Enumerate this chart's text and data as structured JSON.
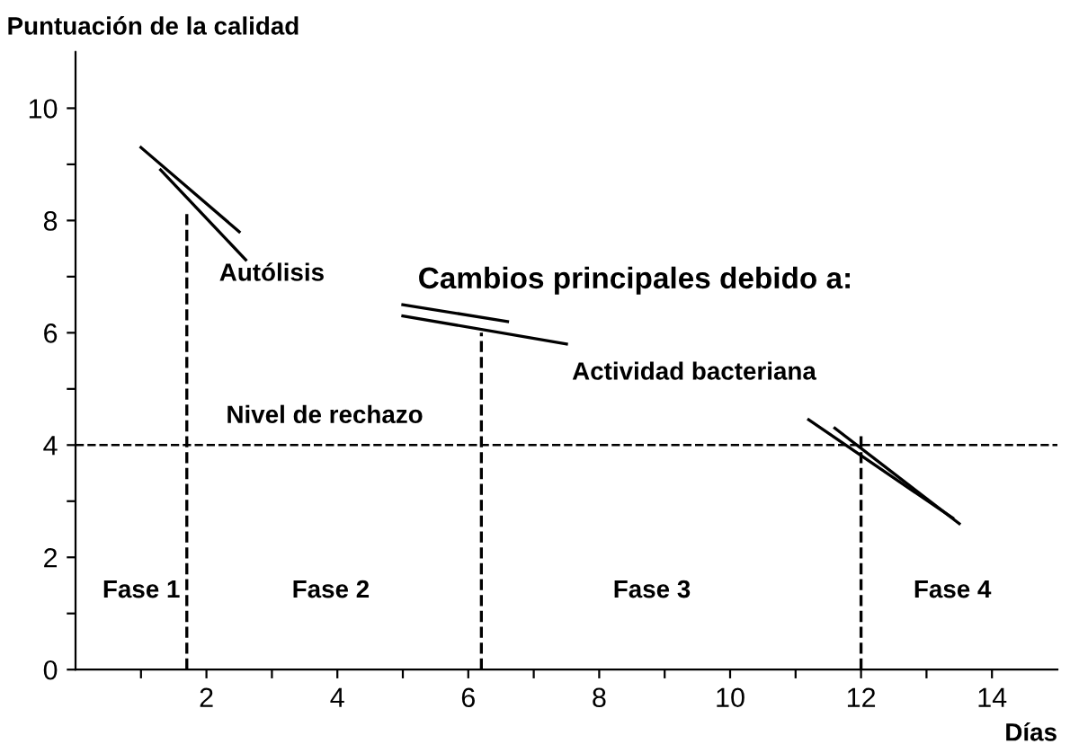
{
  "chart_data": {
    "type": "line",
    "ylabel": "Puntuación de la calidad",
    "xlabel": "Días",
    "xlim": [
      0,
      15
    ],
    "ylim": [
      0,
      11
    ],
    "xticks": [
      {
        "value": 1,
        "label": null
      },
      2,
      {
        "value": 3,
        "label": null
      },
      4,
      {
        "value": 5,
        "label": null
      },
      6,
      {
        "value": 7,
        "label": null
      },
      8,
      {
        "value": 9,
        "label": null
      },
      10,
      {
        "value": 11,
        "label": null
      },
      12,
      {
        "value": 13,
        "label": null
      },
      14
    ],
    "yticks": [
      0,
      {
        "value": 1,
        "label": null
      },
      2,
      {
        "value": 3,
        "label": null
      },
      4,
      {
        "value": 5,
        "label": null
      },
      6,
      {
        "value": 7,
        "label": null
      },
      8,
      {
        "value": 9,
        "label": null
      },
      10
    ],
    "grid": false,
    "legend": false,
    "marker": "none",
    "series": [
      {
        "color": "#000000",
        "x": [
          1.0,
          2.5
        ],
        "values": [
          9.3,
          7.8
        ],
        "line_style": "solid"
      },
      {
        "color": "#000000",
        "x": [
          1.3,
          2.6
        ],
        "values": [
          8.9,
          7.3
        ],
        "line_style": "solid"
      },
      {
        "color": "#000000",
        "x": [
          5.0,
          6.6
        ],
        "values": [
          6.5,
          6.2
        ],
        "line_style": "solid"
      },
      {
        "color": "#000000",
        "x": [
          5.0,
          7.5
        ],
        "values": [
          6.3,
          5.8
        ],
        "line_style": "solid"
      },
      {
        "color": "#000000",
        "x": [
          11.2,
          13.4
        ],
        "values": [
          4.45,
          2.7
        ],
        "line_style": "solid"
      },
      {
        "color": "#000000",
        "x": [
          11.6,
          13.5
        ],
        "values": [
          4.3,
          2.6
        ],
        "line_style": "solid"
      },
      {
        "color": "#000000",
        "x": [
          1.7,
          1.7
        ],
        "values": [
          0,
          8.2
        ],
        "line_style": "dashed"
      },
      {
        "color": "#000000",
        "x": [
          6.2,
          6.2
        ],
        "values": [
          0,
          6.0
        ],
        "line_style": "dashed"
      },
      {
        "color": "#000000",
        "x": [
          12.0,
          12.0
        ],
        "values": [
          0,
          4.2
        ],
        "line_style": "dashed"
      }
    ],
    "ref_lines": [
      {
        "axis": "y",
        "value": 4,
        "label": "Nivel de rechazo",
        "color": "#000000",
        "line_style": "dashed"
      }
    ],
    "annotations": [
      "Autólisis",
      "Cambios principales debido a:",
      "Actividad bacteriana",
      "Fase 1",
      "Fase 2",
      "Fase 3",
      "Fase 4"
    ]
  }
}
